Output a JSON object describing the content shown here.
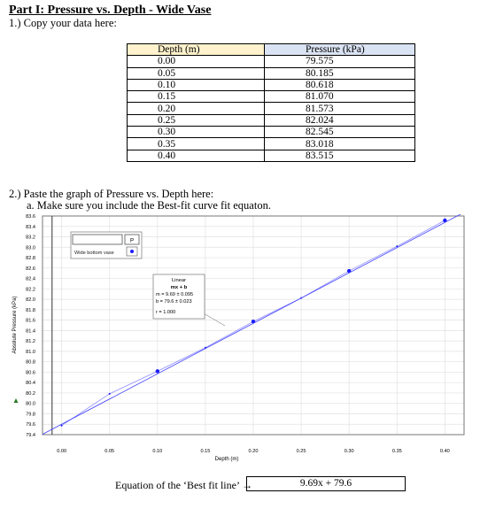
{
  "title": "Part I: Pressure vs. Depth - Wide Vase",
  "q1": "1.) Copy your data here:",
  "table": {
    "headers": [
      "Depth (m)",
      "Pressure (kPa)"
    ],
    "rows": [
      [
        "0.00",
        "79.575"
      ],
      [
        "0.05",
        "80.185"
      ],
      [
        "0.10",
        "80.618"
      ],
      [
        "0.15",
        "81.070"
      ],
      [
        "0.20",
        "81.573"
      ],
      [
        "0.25",
        "82.024"
      ],
      [
        "0.30",
        "82.545"
      ],
      [
        "0.35",
        "83.018"
      ],
      [
        "0.40",
        "83.515"
      ]
    ]
  },
  "q2": "2.) Paste the graph of Pressure vs. Depth here:",
  "q2a": "a.   Make sure you include the Best-fit curve fit equaton.",
  "legend": {
    "label": "Wide bottom vase",
    "p_label": "P"
  },
  "fit_box": {
    "title": "Linear",
    "formula": "mx + b",
    "m_line": "m = 9.69 ± 0.095",
    "b_line": "b = 79.6 ± 0.023",
    "r_line": "r = 1.000"
  },
  "equation_label": "Equation of the ‘Best fit line’ →",
  "equation_value": "9.69x + 79.6",
  "chart_data": {
    "type": "scatter",
    "xlabel": "Depth (m)",
    "ylabel": "Absolute Pressure (kPa)",
    "xlim": [
      -0.02,
      0.42
    ],
    "ylim": [
      79.4,
      83.6
    ],
    "x_ticks": [
      "0.00",
      "0.05",
      "0.10",
      "0.15",
      "0.20",
      "0.25",
      "0.30",
      "0.35",
      "0.40"
    ],
    "y_ticks": [
      "79.4",
      "79.6",
      "79.8",
      "80.0",
      "80.2",
      "80.4",
      "80.6",
      "80.8",
      "81.0",
      "81.2",
      "81.4",
      "81.6",
      "81.8",
      "82.0",
      "82.2",
      "82.4",
      "82.6",
      "82.8",
      "83.0",
      "83.2",
      "83.4",
      "83.6"
    ],
    "series": [
      {
        "name": "Wide bottom vase",
        "x": [
          0.0,
          0.05,
          0.1,
          0.15,
          0.2,
          0.25,
          0.3,
          0.35,
          0.4
        ],
        "y": [
          79.575,
          80.185,
          80.618,
          81.07,
          81.573,
          82.024,
          82.545,
          83.018,
          83.515
        ]
      }
    ],
    "fit": {
      "m": 9.69,
      "b": 79.6
    },
    "grid": true,
    "accent": "#1a1aff"
  }
}
